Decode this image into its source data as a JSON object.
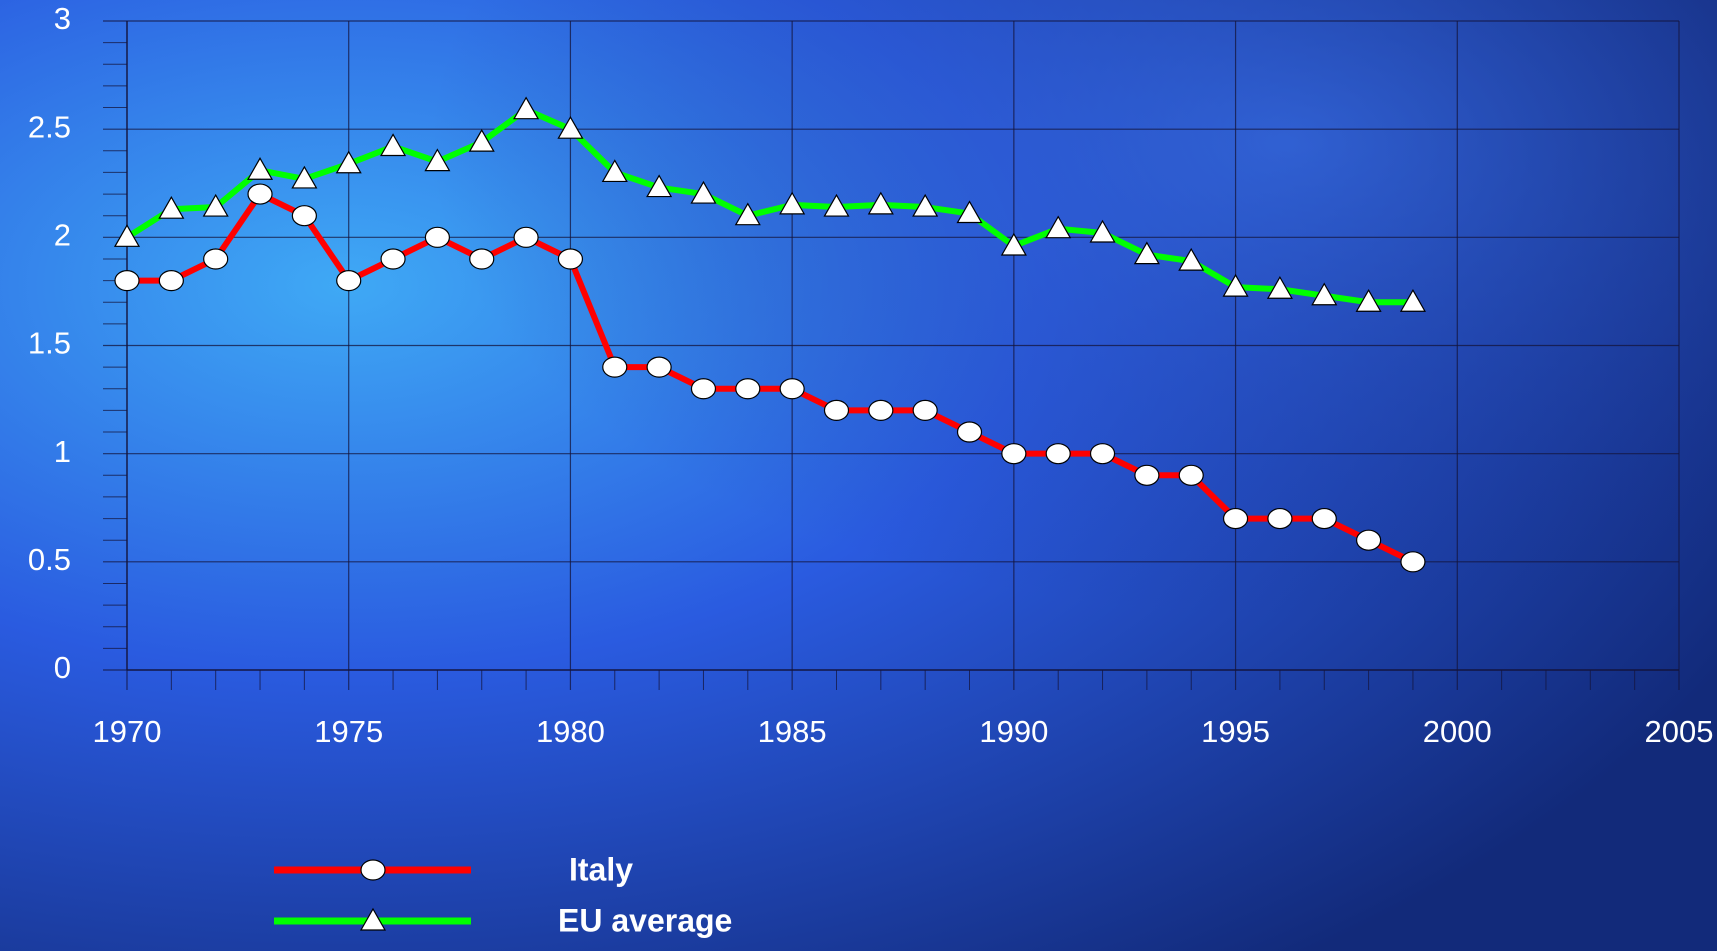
{
  "chart_data": {
    "type": "line",
    "x": [
      1970,
      1971,
      1972,
      1973,
      1974,
      1975,
      1976,
      1977,
      1978,
      1979,
      1980,
      1981,
      1982,
      1983,
      1984,
      1985,
      1986,
      1987,
      1988,
      1989,
      1990,
      1991,
      1992,
      1993,
      1994,
      1995,
      1996,
      1997,
      1998,
      1999
    ],
    "series": [
      {
        "name": "Italy",
        "color": "#ff0000",
        "marker": "circle",
        "values": [
          1.8,
          1.8,
          1.9,
          2.2,
          2.1,
          1.8,
          1.9,
          2.0,
          1.9,
          2.0,
          1.9,
          1.4,
          1.4,
          1.3,
          1.3,
          1.3,
          1.2,
          1.2,
          1.2,
          1.1,
          1.0,
          1.0,
          1.0,
          0.9,
          0.9,
          0.7,
          0.7,
          0.7,
          0.6,
          0.5
        ]
      },
      {
        "name": "EU average",
        "color": "#00ff00",
        "marker": "triangle",
        "values": [
          2.0,
          2.13,
          2.14,
          2.31,
          2.27,
          2.34,
          2.42,
          2.35,
          2.44,
          2.59,
          2.5,
          2.3,
          2.23,
          2.2,
          2.1,
          2.15,
          2.14,
          2.15,
          2.14,
          2.11,
          1.96,
          2.04,
          2.02,
          1.92,
          1.89,
          1.77,
          1.76,
          1.73,
          1.7,
          1.7
        ]
      }
    ],
    "xlim": [
      1970,
      2005
    ],
    "xticks": [
      1970,
      1975,
      1980,
      1985,
      1990,
      1995,
      2000,
      2005
    ],
    "ylim": [
      0,
      3
    ],
    "yticks": [
      0,
      0.5,
      1,
      1.5,
      2,
      2.5,
      3
    ],
    "grid": true
  }
}
